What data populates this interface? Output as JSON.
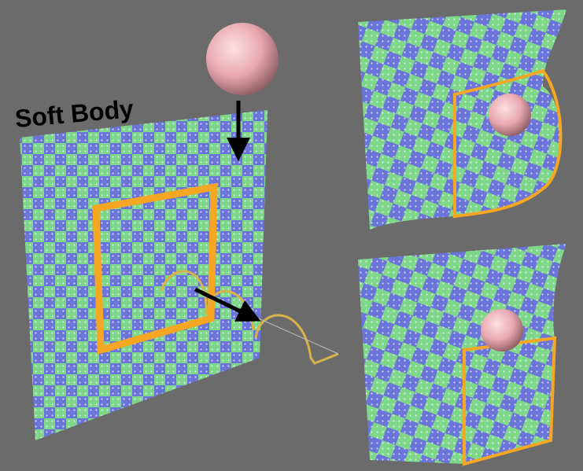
{
  "label": "Soft Body"
}
